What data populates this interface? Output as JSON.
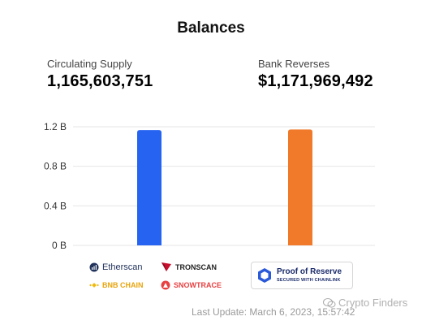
{
  "header": {
    "title": "Balances"
  },
  "stats": {
    "supply": {
      "label": "Circulating Supply",
      "value": "1,165,603,751"
    },
    "reserves": {
      "label": "Bank Reverses",
      "value": "$1,171,969,492"
    }
  },
  "chart_data": {
    "type": "bar",
    "categories": [
      "Circulating Supply",
      "Bank Reverses"
    ],
    "values": [
      1165603751,
      1171969492
    ],
    "colors": [
      "#2563f0",
      "#f07a2a"
    ],
    "ylim": [
      0,
      1200000000
    ],
    "yticks": [
      {
        "value": 0,
        "label": "0 B"
      },
      {
        "value": 400000000,
        "label": "0.4 B"
      },
      {
        "value": 800000000,
        "label": "0.8 B"
      },
      {
        "value": 1200000000,
        "label": "1.2 B"
      }
    ],
    "grid": true,
    "title": "",
    "xlabel": "",
    "ylabel": ""
  },
  "logos": {
    "etherscan": "Etherscan",
    "tronscan": "TRONSCAN",
    "bnbchain": "BNB CHAIN",
    "snowtrace": "SNOWTRACE",
    "proof_main": "Proof of Reserve",
    "proof_sub": "SECURED WITH CHAINLINK"
  },
  "footer": {
    "last_update": "Last Update: March 6, 2023, 15:57:42",
    "watermark": "Crypto Finders"
  }
}
